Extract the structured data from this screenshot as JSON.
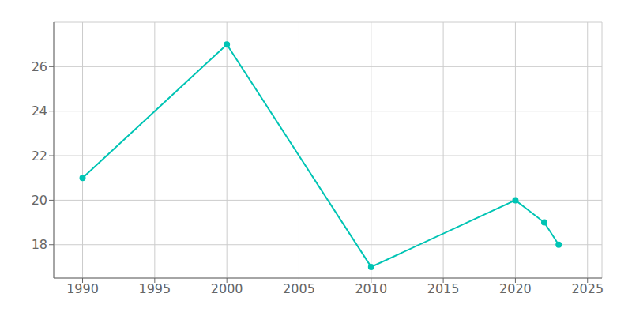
{
  "chart_data": {
    "type": "line",
    "x": [
      1990,
      2000,
      2010,
      2020,
      2022,
      2023
    ],
    "values": [
      21,
      27,
      17,
      20,
      19,
      18
    ],
    "color": "#00c4b4",
    "marker": "circle",
    "xlim": [
      1988,
      2026
    ],
    "xticks": [
      1990,
      1995,
      2000,
      2005,
      2010,
      2015,
      2020,
      2025
    ],
    "ylim": [
      16.5,
      28
    ],
    "yticks": [
      18,
      20,
      22,
      24,
      26
    ],
    "grid": true
  }
}
